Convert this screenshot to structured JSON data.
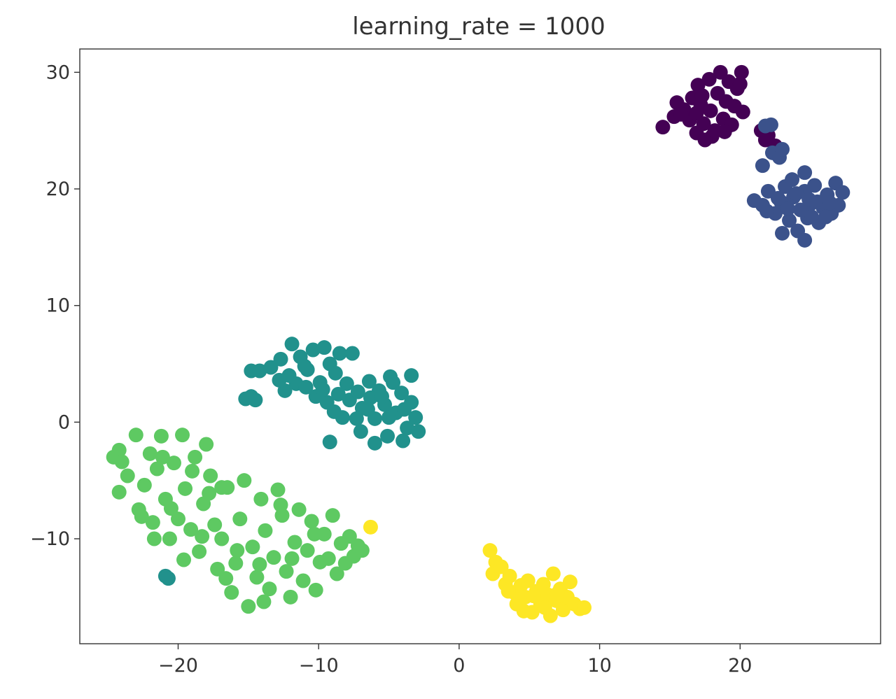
{
  "chart_data": {
    "type": "scatter",
    "title": "learning_rate = 1000",
    "xlabel": "",
    "ylabel": "",
    "xlim": [
      -27,
      30
    ],
    "ylim": [
      -19,
      32
    ],
    "xticks": [
      -20,
      -10,
      0,
      10,
      20
    ],
    "yticks": [
      -10,
      0,
      10,
      20,
      30
    ],
    "xtick_labels": [
      "−20",
      "−10",
      "0",
      "10",
      "20"
    ],
    "ytick_labels": [
      "−10",
      "0",
      "10",
      "20",
      "30"
    ],
    "grid": false,
    "legend": "none",
    "colormap": "viridis",
    "series": [
      {
        "color": "#440154",
        "points": [
          [
            14.5,
            25.3
          ],
          [
            15.3,
            26.2
          ],
          [
            15.5,
            27.4
          ],
          [
            16.0,
            26.8
          ],
          [
            16.6,
            27.8
          ],
          [
            16.4,
            25.9
          ],
          [
            17.0,
            28.9
          ],
          [
            17.2,
            27.2
          ],
          [
            17.4,
            25.6
          ],
          [
            17.8,
            29.4
          ],
          [
            17.9,
            26.7
          ],
          [
            18.0,
            24.5
          ],
          [
            18.4,
            28.2
          ],
          [
            18.6,
            30.0
          ],
          [
            18.8,
            26.0
          ],
          [
            19.0,
            27.5
          ],
          [
            19.2,
            29.2
          ],
          [
            19.4,
            25.5
          ],
          [
            19.8,
            28.6
          ],
          [
            20.1,
            30.0
          ],
          [
            20.2,
            26.6
          ],
          [
            16.9,
            24.8
          ],
          [
            17.5,
            24.2
          ],
          [
            18.2,
            25.0
          ],
          [
            19.6,
            27.1
          ],
          [
            20.0,
            29.0
          ],
          [
            15.8,
            26.4
          ],
          [
            16.9,
            26.5
          ],
          [
            18.9,
            24.9
          ],
          [
            17.3,
            28.0
          ],
          [
            21.5,
            25.0
          ],
          [
            22.0,
            24.6
          ],
          [
            22.5,
            23.7
          ],
          [
            21.8,
            24.2
          ]
        ]
      },
      {
        "color": "#3b528b",
        "points": [
          [
            21.8,
            25.4
          ],
          [
            22.2,
            25.5
          ],
          [
            21.6,
            22.0
          ],
          [
            22.3,
            23.1
          ],
          [
            22.8,
            22.7
          ],
          [
            23.0,
            23.4
          ],
          [
            21.0,
            19.0
          ],
          [
            21.6,
            18.6
          ],
          [
            22.0,
            19.8
          ],
          [
            22.5,
            17.9
          ],
          [
            22.9,
            18.9
          ],
          [
            23.2,
            20.2
          ],
          [
            23.5,
            17.3
          ],
          [
            23.8,
            19.3
          ],
          [
            24.1,
            16.4
          ],
          [
            24.3,
            18.2
          ],
          [
            24.6,
            19.8
          ],
          [
            24.8,
            17.5
          ],
          [
            25.0,
            18.7
          ],
          [
            25.3,
            20.3
          ],
          [
            25.6,
            17.1
          ],
          [
            25.9,
            18.4
          ],
          [
            26.2,
            19.5
          ],
          [
            26.5,
            17.9
          ],
          [
            26.8,
            20.5
          ],
          [
            27.0,
            18.6
          ],
          [
            27.3,
            19.7
          ],
          [
            24.6,
            21.4
          ],
          [
            24.6,
            15.6
          ],
          [
            23.0,
            16.2
          ],
          [
            21.9,
            18.1
          ],
          [
            23.4,
            18.3
          ],
          [
            25.5,
            18.9
          ],
          [
            24.0,
            19.6
          ],
          [
            26.4,
            18.8
          ],
          [
            22.7,
            19.2
          ],
          [
            25.1,
            17.6
          ],
          [
            23.7,
            20.8
          ],
          [
            26.1,
            17.6
          ],
          [
            24.9,
            19.1
          ]
        ]
      },
      {
        "color": "#21918c",
        "points": [
          [
            -14.8,
            4.4
          ],
          [
            -14.2,
            4.4
          ],
          [
            -13.4,
            4.7
          ],
          [
            -12.7,
            5.4
          ],
          [
            -12.1,
            4.0
          ],
          [
            -11.9,
            6.7
          ],
          [
            -11.3,
            5.6
          ],
          [
            -10.8,
            4.5
          ],
          [
            -10.4,
            6.2
          ],
          [
            -9.9,
            3.4
          ],
          [
            -9.6,
            6.4
          ],
          [
            -9.2,
            5.0
          ],
          [
            -8.8,
            4.2
          ],
          [
            -8.5,
            5.9
          ],
          [
            -8.0,
            3.3
          ],
          [
            -7.6,
            5.9
          ],
          [
            -11.6,
            3.3
          ],
          [
            -12.4,
            2.7
          ],
          [
            -10.2,
            2.2
          ],
          [
            -9.4,
            1.7
          ],
          [
            -8.9,
            0.9
          ],
          [
            -8.3,
            0.4
          ],
          [
            -7.8,
            1.9
          ],
          [
            -7.2,
            2.6
          ],
          [
            -6.9,
            1.2
          ],
          [
            -6.4,
            3.5
          ],
          [
            -6.0,
            0.3
          ],
          [
            -5.7,
            2.7
          ],
          [
            -5.3,
            1.5
          ],
          [
            -4.9,
            3.9
          ],
          [
            -4.5,
            0.8
          ],
          [
            -4.1,
            2.5
          ],
          [
            -3.7,
            -0.5
          ],
          [
            -3.4,
            1.7
          ],
          [
            -3.1,
            0.4
          ],
          [
            -2.9,
            -0.8
          ],
          [
            -3.4,
            4.0
          ],
          [
            -4.7,
            3.4
          ],
          [
            -6.3,
            2.1
          ],
          [
            -5.1,
            -1.2
          ],
          [
            -4.0,
            -1.6
          ],
          [
            -6.0,
            -1.8
          ],
          [
            -7.0,
            -0.8
          ],
          [
            -15.2,
            2.0
          ],
          [
            -14.8,
            2.2
          ],
          [
            -14.5,
            1.9
          ],
          [
            -9.2,
            -1.7
          ],
          [
            -10.9,
            3.0
          ],
          [
            -9.7,
            2.8
          ],
          [
            -6.5,
            1.1
          ],
          [
            -5.5,
            2.2
          ],
          [
            -3.9,
            1.1
          ],
          [
            -7.3,
            0.3
          ],
          [
            -11.0,
            4.8
          ],
          [
            -12.8,
            3.6
          ],
          [
            -8.6,
            2.4
          ],
          [
            -5.0,
            0.4
          ],
          [
            -20.9,
            -13.2
          ],
          [
            -20.7,
            -13.4
          ]
        ]
      },
      {
        "color": "#5ec962",
        "points": [
          [
            -24.6,
            -3.0
          ],
          [
            -24.2,
            -2.4
          ],
          [
            -24.0,
            -3.4
          ],
          [
            -23.6,
            -4.6
          ],
          [
            -24.2,
            -6.0
          ],
          [
            -23.0,
            -1.1
          ],
          [
            -22.8,
            -7.5
          ],
          [
            -22.4,
            -5.4
          ],
          [
            -22.0,
            -2.7
          ],
          [
            -21.8,
            -8.6
          ],
          [
            -21.5,
            -4.0
          ],
          [
            -21.2,
            -1.2
          ],
          [
            -20.9,
            -6.6
          ],
          [
            -20.6,
            -10.0
          ],
          [
            -20.3,
            -3.5
          ],
          [
            -20.0,
            -8.3
          ],
          [
            -19.7,
            -1.1
          ],
          [
            -19.5,
            -5.7
          ],
          [
            -19.1,
            -9.2
          ],
          [
            -18.8,
            -3.0
          ],
          [
            -18.5,
            -11.1
          ],
          [
            -18.2,
            -7.0
          ],
          [
            -18.0,
            -1.9
          ],
          [
            -17.7,
            -4.6
          ],
          [
            -17.4,
            -8.8
          ],
          [
            -17.2,
            -12.6
          ],
          [
            -16.9,
            -10.0
          ],
          [
            -16.5,
            -5.6
          ],
          [
            -16.2,
            -14.6
          ],
          [
            -15.9,
            -12.1
          ],
          [
            -15.6,
            -8.3
          ],
          [
            -15.3,
            -5.0
          ],
          [
            -15.0,
            -15.8
          ],
          [
            -14.7,
            -10.7
          ],
          [
            -14.4,
            -13.3
          ],
          [
            -14.1,
            -6.6
          ],
          [
            -13.8,
            -9.3
          ],
          [
            -13.5,
            -14.3
          ],
          [
            -13.2,
            -11.6
          ],
          [
            -12.9,
            -5.8
          ],
          [
            -12.6,
            -8.0
          ],
          [
            -12.3,
            -12.8
          ],
          [
            -12.0,
            -15.0
          ],
          [
            -11.7,
            -10.3
          ],
          [
            -11.4,
            -7.5
          ],
          [
            -11.1,
            -13.6
          ],
          [
            -10.8,
            -11.0
          ],
          [
            -10.5,
            -8.5
          ],
          [
            -10.2,
            -14.4
          ],
          [
            -9.9,
            -12.0
          ],
          [
            -9.6,
            -9.6
          ],
          [
            -9.3,
            -11.7
          ],
          [
            -9.0,
            -8.0
          ],
          [
            -8.7,
            -13.0
          ],
          [
            -8.4,
            -10.4
          ],
          [
            -8.1,
            -12.1
          ],
          [
            -7.8,
            -9.8
          ],
          [
            -7.5,
            -11.5
          ],
          [
            -7.2,
            -10.6
          ],
          [
            -6.9,
            -11.0
          ],
          [
            -19.6,
            -11.8
          ],
          [
            -21.7,
            -10.0
          ],
          [
            -22.6,
            -8.1
          ],
          [
            -16.6,
            -13.4
          ],
          [
            -13.9,
            -15.4
          ],
          [
            -12.7,
            -7.1
          ],
          [
            -18.3,
            -9.8
          ],
          [
            -17.8,
            -6.1
          ],
          [
            -20.5,
            -7.4
          ],
          [
            -15.8,
            -11.0
          ],
          [
            -14.2,
            -12.2
          ],
          [
            -11.9,
            -11.7
          ],
          [
            -10.3,
            -9.6
          ],
          [
            -16.9,
            -5.6
          ],
          [
            -19.0,
            -4.2
          ],
          [
            -21.1,
            -3.0
          ]
        ]
      },
      {
        "color": "#fde725",
        "points": [
          [
            -6.3,
            -9.0
          ],
          [
            2.2,
            -11.0
          ],
          [
            2.6,
            -12.0
          ],
          [
            2.4,
            -13.0
          ],
          [
            3.0,
            -12.4
          ],
          [
            3.3,
            -13.9
          ],
          [
            3.6,
            -13.2
          ],
          [
            3.9,
            -14.6
          ],
          [
            4.1,
            -15.6
          ],
          [
            4.4,
            -14.0
          ],
          [
            4.7,
            -15.0
          ],
          [
            4.9,
            -13.6
          ],
          [
            5.2,
            -16.3
          ],
          [
            5.5,
            -14.5
          ],
          [
            5.8,
            -15.6
          ],
          [
            6.0,
            -13.9
          ],
          [
            6.3,
            -14.8
          ],
          [
            6.5,
            -16.6
          ],
          [
            6.7,
            -13.0
          ],
          [
            6.9,
            -15.3
          ],
          [
            7.2,
            -14.3
          ],
          [
            7.4,
            -16.1
          ],
          [
            7.7,
            -15.0
          ],
          [
            7.9,
            -13.7
          ],
          [
            8.2,
            -15.6
          ],
          [
            8.6,
            -16.0
          ],
          [
            8.9,
            -15.9
          ],
          [
            5.3,
            -14.9
          ],
          [
            6.1,
            -15.9
          ],
          [
            4.6,
            -16.2
          ],
          [
            7.0,
            -14.7
          ],
          [
            3.5,
            -14.5
          ]
        ]
      }
    ]
  }
}
